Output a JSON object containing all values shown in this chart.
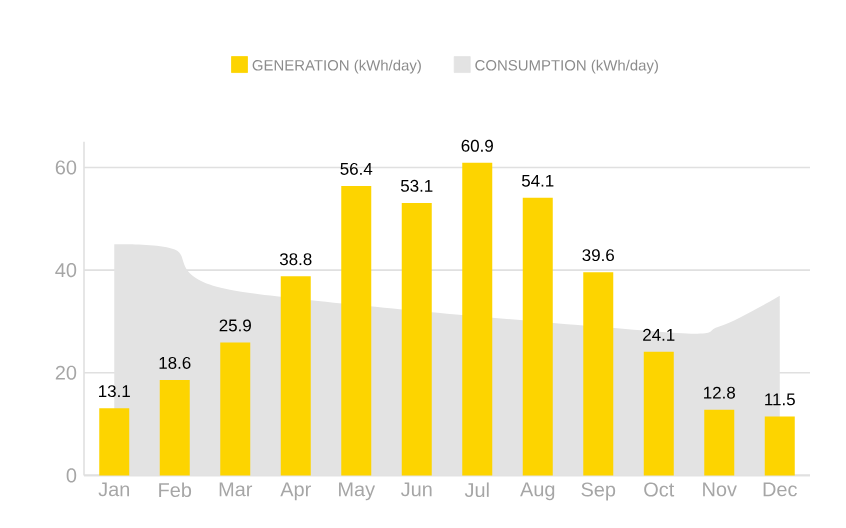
{
  "chart_data": {
    "type": "bar",
    "categories": [
      "Jan",
      "Feb",
      "Mar",
      "Apr",
      "May",
      "Jun",
      "Jul",
      "Aug",
      "Sep",
      "Oct",
      "Nov",
      "Dec"
    ],
    "series": [
      {
        "name": "GENERATION (kWh/day)",
        "color": "#fdd400",
        "values": [
          13.1,
          18.6,
          25.9,
          38.8,
          56.4,
          53.1,
          60.9,
          54.1,
          39.6,
          24.1,
          12.8,
          11.5
        ],
        "value_labels": [
          "13.1",
          "18.6",
          "25.9",
          "38.8",
          "56.4",
          "53.1",
          "60.9",
          "54.1",
          "39.6",
          "24.1",
          "12.8",
          "11.5"
        ]
      },
      {
        "name": "CONSUMPTION (kWh/day)",
        "type": "area",
        "color": "#e3e3e3",
        "values": [
          45,
          44,
          36,
          null,
          null,
          null,
          null,
          null,
          null,
          28,
          29,
          35
        ]
      }
    ],
    "ylim": [
      0,
      65
    ],
    "yticks": [
      0,
      20,
      40,
      60
    ],
    "grid": "y",
    "legend": "top"
  }
}
